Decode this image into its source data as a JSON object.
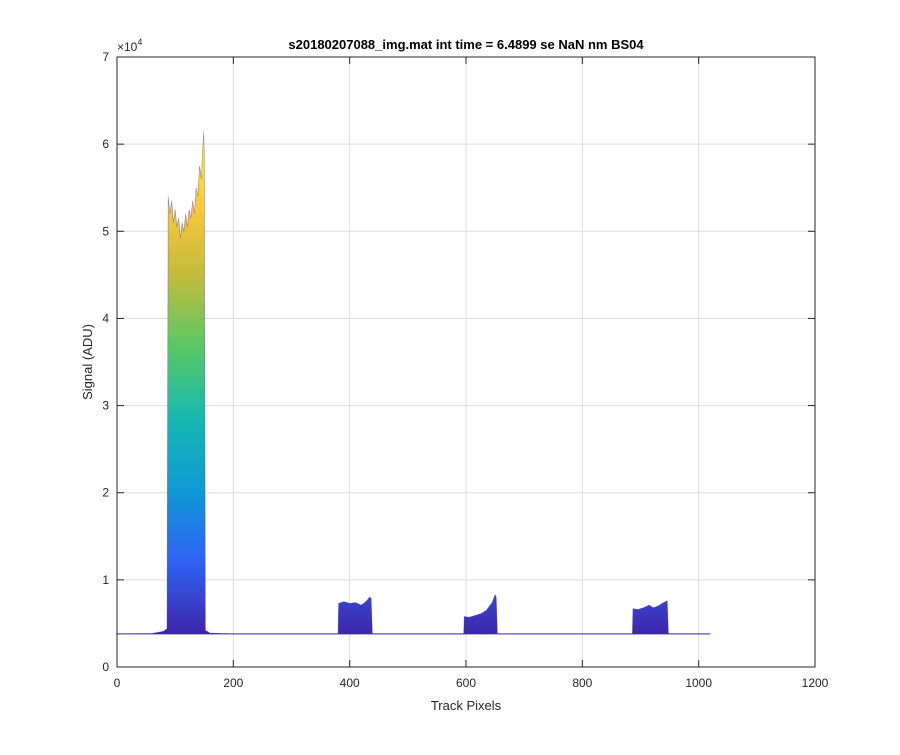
{
  "chart_data": {
    "type": "area",
    "title": "s20180207088_img.mat int time = 6.4899 se  NaN nm BS04",
    "xlabel": "Track Pixels",
    "ylabel": "Signal (ADU)",
    "y_exponent_base": "×10",
    "y_exponent_power": "4",
    "xlim": [
      0,
      1200
    ],
    "ylim": [
      0,
      70000
    ],
    "x_ticks": [
      0,
      200,
      400,
      600,
      800,
      1000,
      1200
    ],
    "x_tick_labels": [
      "0",
      "200",
      "400",
      "600",
      "800",
      "1000",
      "1200"
    ],
    "y_ticks": [
      0,
      10000,
      20000,
      30000,
      40000,
      50000,
      60000,
      70000
    ],
    "y_tick_labels": [
      "0",
      "1",
      "2",
      "3",
      "4",
      "5",
      "6",
      "7"
    ],
    "grid": true,
    "baseline": 3800,
    "colormap": [
      "#3e26a8",
      "#2f62f5",
      "#0f9ad4",
      "#16b8b0",
      "#59c864",
      "#c4bb3c",
      "#fec93a",
      "#f9fb14"
    ],
    "series_profile": [
      [
        0,
        3800
      ],
      [
        60,
        3850
      ],
      [
        80,
        4100
      ],
      [
        86,
        4400
      ],
      [
        88,
        54000
      ],
      [
        91,
        52000
      ],
      [
        94,
        53500
      ],
      [
        97,
        51000
      ],
      [
        100,
        52500
      ],
      [
        103,
        50500
      ],
      [
        106,
        51500
      ],
      [
        109,
        49200
      ],
      [
        112,
        51000
      ],
      [
        115,
        50000
      ],
      [
        118,
        52000
      ],
      [
        121,
        50500
      ],
      [
        124,
        52500
      ],
      [
        127,
        51500
      ],
      [
        130,
        53500
      ],
      [
        133,
        52000
      ],
      [
        136,
        55000
      ],
      [
        139,
        54000
      ],
      [
        142,
        57500
      ],
      [
        145,
        56000
      ],
      [
        147,
        59000
      ],
      [
        149,
        61500
      ],
      [
        150,
        59000
      ],
      [
        152,
        4200
      ],
      [
        160,
        3900
      ],
      [
        200,
        3800
      ],
      [
        380,
        3800
      ],
      [
        381,
        7300
      ],
      [
        390,
        7500
      ],
      [
        400,
        7300
      ],
      [
        410,
        7400
      ],
      [
        420,
        7100
      ],
      [
        428,
        7500
      ],
      [
        434,
        8000
      ],
      [
        437,
        7900
      ],
      [
        439,
        3800
      ],
      [
        596,
        3800
      ],
      [
        597,
        5800
      ],
      [
        605,
        5700
      ],
      [
        615,
        5900
      ],
      [
        625,
        6100
      ],
      [
        635,
        6500
      ],
      [
        645,
        7400
      ],
      [
        650,
        8300
      ],
      [
        652,
        8000
      ],
      [
        654,
        3800
      ],
      [
        886,
        3800
      ],
      [
        887,
        6700
      ],
      [
        895,
        6600
      ],
      [
        905,
        6800
      ],
      [
        915,
        7100
      ],
      [
        922,
        6800
      ],
      [
        930,
        7000
      ],
      [
        940,
        7400
      ],
      [
        946,
        7600
      ],
      [
        948,
        3800
      ],
      [
        1020,
        3800
      ]
    ]
  }
}
